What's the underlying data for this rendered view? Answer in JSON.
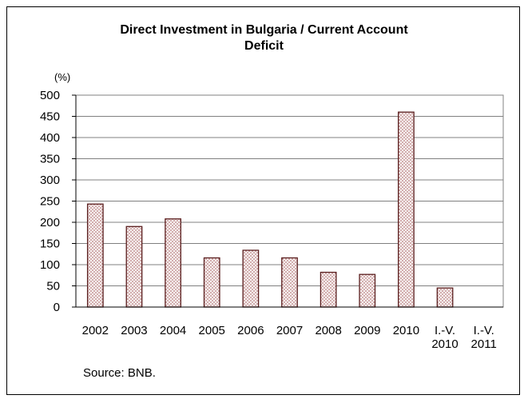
{
  "chart_data": {
    "type": "bar",
    "title_lines": [
      "Direct Investment in Bulgaria / Current Account",
      "Deficit"
    ],
    "unit": "(%)",
    "categories": [
      [
        "2002"
      ],
      [
        "2003"
      ],
      [
        "2004"
      ],
      [
        "2005"
      ],
      [
        "2006"
      ],
      [
        "2007"
      ],
      [
        "2008"
      ],
      [
        "2009"
      ],
      [
        "2010"
      ],
      [
        "I.-V.",
        "2010"
      ],
      [
        "I.-V.",
        "2011"
      ]
    ],
    "values": [
      243,
      190,
      208,
      116,
      134,
      116,
      82,
      77,
      460,
      45,
      null
    ],
    "ylim": [
      0,
      500
    ],
    "yticks": [
      0,
      50,
      100,
      150,
      200,
      250,
      300,
      350,
      400,
      450,
      500
    ],
    "grid": true,
    "legend": "none",
    "bar_color": "#c89a9a",
    "bar_pattern_color": "#ffffff",
    "bar_stroke": "#5a1e1e"
  },
  "source": "Source: BNB."
}
